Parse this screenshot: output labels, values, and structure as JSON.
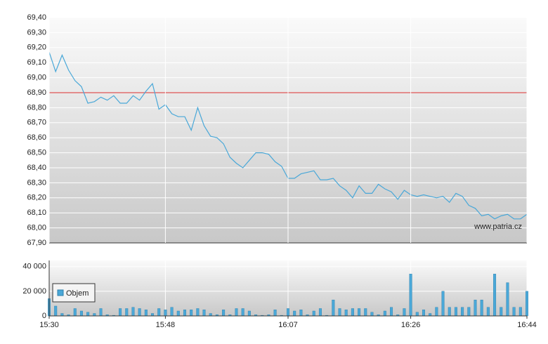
{
  "watermark": "www.patria.cz",
  "chart_data": [
    {
      "type": "line",
      "color": "#4aa8d8",
      "ylim": [
        67.9,
        69.4
      ],
      "yticks": [
        {
          "value": 67.9,
          "label": "67,90"
        },
        {
          "value": 68.0,
          "label": "68,00"
        },
        {
          "value": 68.1,
          "label": "68,10"
        },
        {
          "value": 68.2,
          "label": "68,20"
        },
        {
          "value": 68.3,
          "label": "68,30"
        },
        {
          "value": 68.4,
          "label": "68,40"
        },
        {
          "value": 68.5,
          "label": "68,50"
        },
        {
          "value": 68.6,
          "label": "68,60"
        },
        {
          "value": 68.7,
          "label": "68,70"
        },
        {
          "value": 68.8,
          "label": "68,80"
        },
        {
          "value": 68.9,
          "label": "68,90"
        },
        {
          "value": 69.0,
          "label": "69,00"
        },
        {
          "value": 69.1,
          "label": "69,10"
        },
        {
          "value": 69.2,
          "label": "69,20"
        },
        {
          "value": 69.3,
          "label": "69,30"
        },
        {
          "value": 69.4,
          "label": "69,40"
        }
      ],
      "reference_line": 68.9,
      "reference_color": "#e05555",
      "values": [
        69.17,
        69.04,
        69.15,
        69.05,
        68.98,
        68.94,
        68.83,
        68.84,
        68.87,
        68.85,
        68.88,
        68.83,
        68.83,
        68.88,
        68.85,
        68.91,
        68.96,
        68.79,
        68.82,
        68.76,
        68.74,
        68.74,
        68.65,
        68.8,
        68.68,
        68.61,
        68.6,
        68.56,
        68.47,
        68.43,
        68.4,
        68.45,
        68.5,
        68.5,
        68.49,
        68.44,
        68.41,
        68.33,
        68.33,
        68.36,
        68.37,
        68.38,
        68.32,
        68.32,
        68.33,
        68.28,
        68.25,
        68.2,
        68.28,
        68.23,
        68.23,
        68.29,
        68.26,
        68.24,
        68.19,
        68.25,
        68.22,
        68.21,
        68.22,
        68.21,
        68.2,
        68.21,
        68.17,
        68.23,
        68.21,
        68.15,
        68.13,
        68.08,
        68.09,
        68.06,
        68.08,
        68.09,
        68.06,
        68.06,
        68.09
      ]
    },
    {
      "type": "bar",
      "ylim": [
        0,
        45000
      ],
      "yticks": [
        0,
        {
          "value": 20000,
          "label": "20 000"
        },
        {
          "value": 40000,
          "label": "40 000"
        }
      ],
      "categories": [
        "15:30",
        null,
        null,
        null,
        null,
        null,
        null,
        null,
        null,
        null,
        null,
        null,
        null,
        null,
        null,
        null,
        null,
        null,
        "15:48",
        null,
        null,
        null,
        null,
        null,
        null,
        null,
        null,
        null,
        null,
        null,
        null,
        null,
        null,
        null,
        null,
        null,
        null,
        "16:07",
        null,
        null,
        null,
        null,
        null,
        null,
        null,
        null,
        null,
        null,
        null,
        null,
        null,
        null,
        null,
        null,
        null,
        null,
        "16:26",
        null,
        null,
        null,
        null,
        null,
        null,
        null,
        null,
        null,
        null,
        null,
        null,
        null,
        null,
        null,
        null,
        null,
        "16:44"
      ],
      "series": [
        {
          "name": "Objem",
          "color": "#4aa8d8",
          "values": [
            14000,
            8000,
            2000,
            1000,
            6000,
            4000,
            3000,
            2000,
            6000,
            1000,
            500,
            6000,
            6000,
            7000,
            6000,
            5000,
            2000,
            6000,
            5000,
            7000,
            4000,
            5000,
            5000,
            6000,
            5000,
            2000,
            1000,
            5000,
            1000,
            6000,
            6000,
            4000,
            1000,
            500,
            1000,
            5000,
            500,
            6000,
            4000,
            5000,
            1000,
            4000,
            6000,
            500,
            13000,
            6000,
            5000,
            6000,
            6000,
            6000,
            3000,
            1000,
            4000,
            7000,
            1000,
            6000,
            34000,
            3000,
            5000,
            2000,
            7000,
            20000,
            7000,
            7000,
            7000,
            7000,
            13000,
            13000,
            7000,
            34000,
            7000,
            27000,
            7000,
            7000,
            20000
          ]
        }
      ]
    }
  ]
}
